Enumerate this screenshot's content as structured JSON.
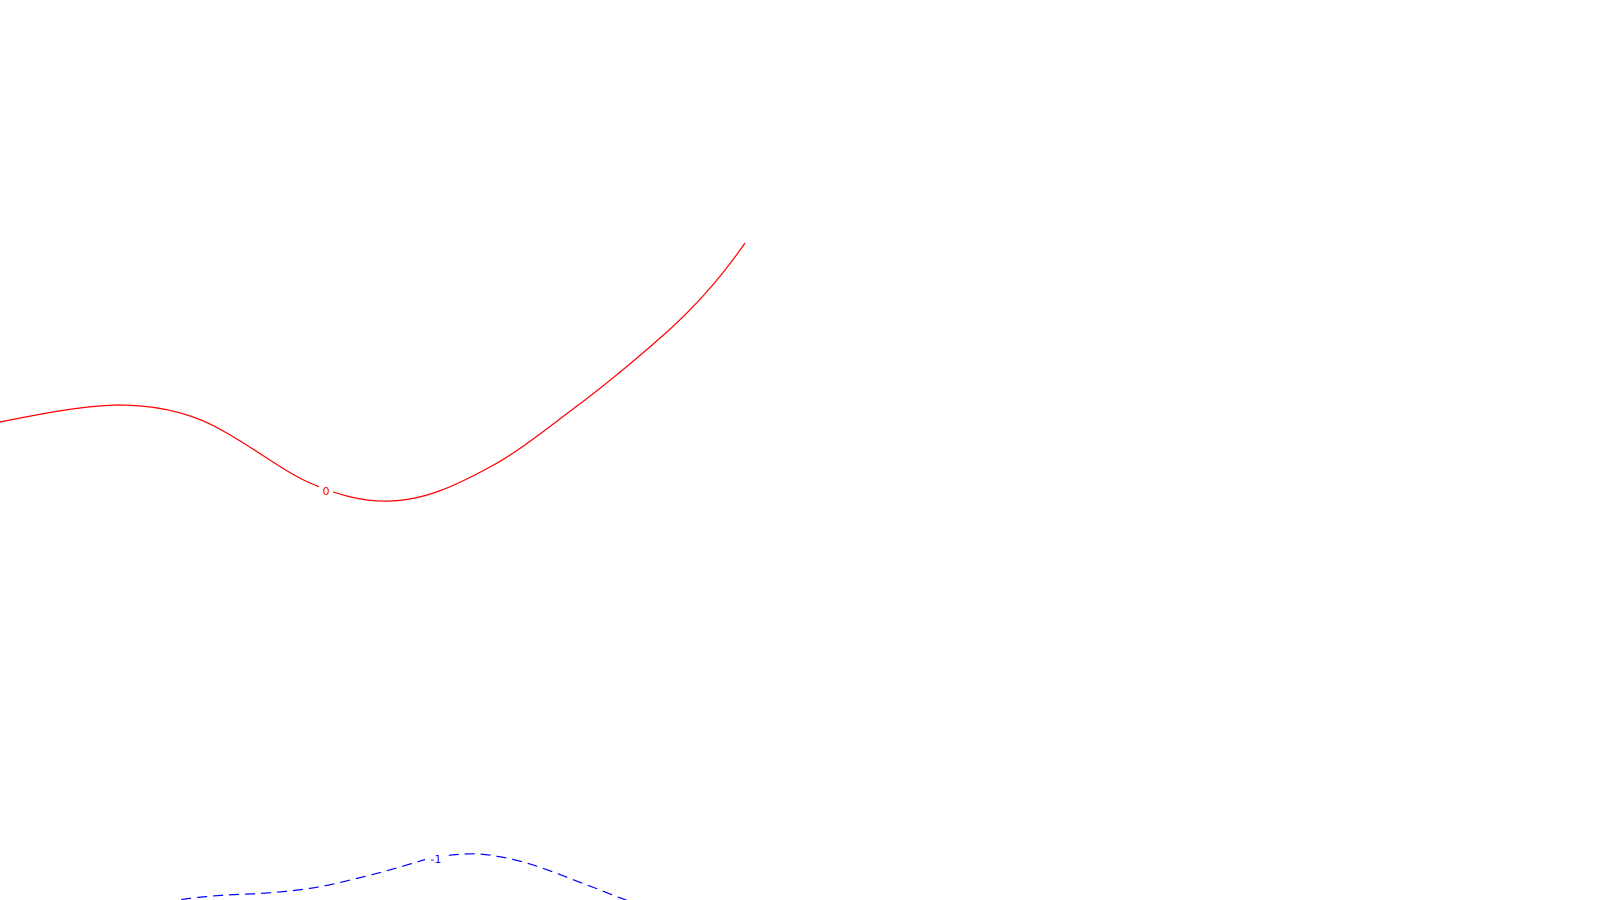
{
  "contours": [
    {
      "label": "0",
      "color": "#ff0000",
      "style": "solid"
    },
    {
      "label": "-1",
      "color": "#0000ff",
      "style": "dashed"
    }
  ]
}
